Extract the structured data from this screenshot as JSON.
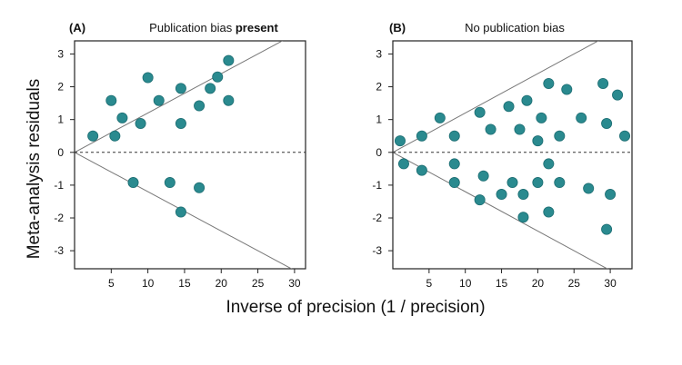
{
  "figure": {
    "ylabel": "Meta-analysis residuals",
    "xlabel": "Inverse of precision (1 / precision)"
  },
  "panels": [
    {
      "tag": "(A)",
      "title_prefix": "Publication bias ",
      "title_bold": "present"
    },
    {
      "tag": "(B)",
      "title_prefix": "No publication bias",
      "title_bold": ""
    }
  ],
  "colors": {
    "point": "#2a8a8f",
    "point_stroke": "#1d6e73",
    "line": "#777777",
    "zero_line": "#333333",
    "axis": "#222222"
  },
  "chart_data": [
    {
      "type": "scatter",
      "panel": "A",
      "xlim": [
        0,
        31.5
      ],
      "ylim": [
        -3.55,
        3.4
      ],
      "x_ticks": [
        5,
        10,
        15,
        20,
        25,
        30
      ],
      "y_ticks": [
        3,
        2,
        1,
        0,
        -1,
        -2,
        -3
      ],
      "zero_line": "dashed",
      "funnel_slope": 0.12,
      "grid": false,
      "points": [
        {
          "x": 2.5,
          "y": 0.5
        },
        {
          "x": 5.0,
          "y": 1.58
        },
        {
          "x": 5.5,
          "y": 0.5
        },
        {
          "x": 6.5,
          "y": 1.05
        },
        {
          "x": 9.0,
          "y": 0.88
        },
        {
          "x": 10.0,
          "y": 2.28
        },
        {
          "x": 11.5,
          "y": 1.58
        },
        {
          "x": 14.5,
          "y": 1.95
        },
        {
          "x": 14.5,
          "y": 0.88
        },
        {
          "x": 17.0,
          "y": 1.42
        },
        {
          "x": 18.5,
          "y": 1.95
        },
        {
          "x": 19.5,
          "y": 2.3
        },
        {
          "x": 21.0,
          "y": 2.8
        },
        {
          "x": 21.0,
          "y": 1.58
        },
        {
          "x": 8.0,
          "y": -0.92
        },
        {
          "x": 13.0,
          "y": -0.92
        },
        {
          "x": 17.0,
          "y": -1.08
        },
        {
          "x": 14.5,
          "y": -1.82
        }
      ]
    },
    {
      "type": "scatter",
      "panel": "B",
      "xlim": [
        0,
        33
      ],
      "ylim": [
        -3.55,
        3.4
      ],
      "x_ticks": [
        5,
        10,
        15,
        20,
        25,
        30
      ],
      "y_ticks": [
        3,
        2,
        1,
        0,
        -1,
        -2,
        -3
      ],
      "zero_line": "dashed",
      "funnel_slope": 0.12,
      "grid": false,
      "points": [
        {
          "x": 1.0,
          "y": 0.35
        },
        {
          "x": 4.0,
          "y": 0.5
        },
        {
          "x": 6.5,
          "y": 1.05
        },
        {
          "x": 8.5,
          "y": 0.5
        },
        {
          "x": 12.0,
          "y": 1.22
        },
        {
          "x": 13.5,
          "y": 0.7
        },
        {
          "x": 16.0,
          "y": 1.4
        },
        {
          "x": 17.5,
          "y": 0.7
        },
        {
          "x": 18.5,
          "y": 1.58
        },
        {
          "x": 20.0,
          "y": 0.35
        },
        {
          "x": 20.5,
          "y": 1.05
        },
        {
          "x": 21.5,
          "y": 2.1
        },
        {
          "x": 23.0,
          "y": 0.5
        },
        {
          "x": 24.0,
          "y": 1.92
        },
        {
          "x": 26.0,
          "y": 1.05
        },
        {
          "x": 29.0,
          "y": 2.1
        },
        {
          "x": 29.5,
          "y": 0.88
        },
        {
          "x": 31.0,
          "y": 1.75
        },
        {
          "x": 32.0,
          "y": 0.5
        },
        {
          "x": 1.5,
          "y": -0.35
        },
        {
          "x": 4.0,
          "y": -0.55
        },
        {
          "x": 8.5,
          "y": -0.35
        },
        {
          "x": 8.5,
          "y": -0.92
        },
        {
          "x": 12.0,
          "y": -1.45
        },
        {
          "x": 12.5,
          "y": -0.72
        },
        {
          "x": 15.0,
          "y": -1.28
        },
        {
          "x": 16.5,
          "y": -0.92
        },
        {
          "x": 18.0,
          "y": -1.28
        },
        {
          "x": 18.0,
          "y": -1.98
        },
        {
          "x": 20.0,
          "y": -0.92
        },
        {
          "x": 21.5,
          "y": -0.35
        },
        {
          "x": 21.5,
          "y": -1.82
        },
        {
          "x": 23.0,
          "y": -0.92
        },
        {
          "x": 27.0,
          "y": -1.1
        },
        {
          "x": 29.5,
          "y": -2.35
        },
        {
          "x": 30.0,
          "y": -1.28
        }
      ]
    }
  ]
}
